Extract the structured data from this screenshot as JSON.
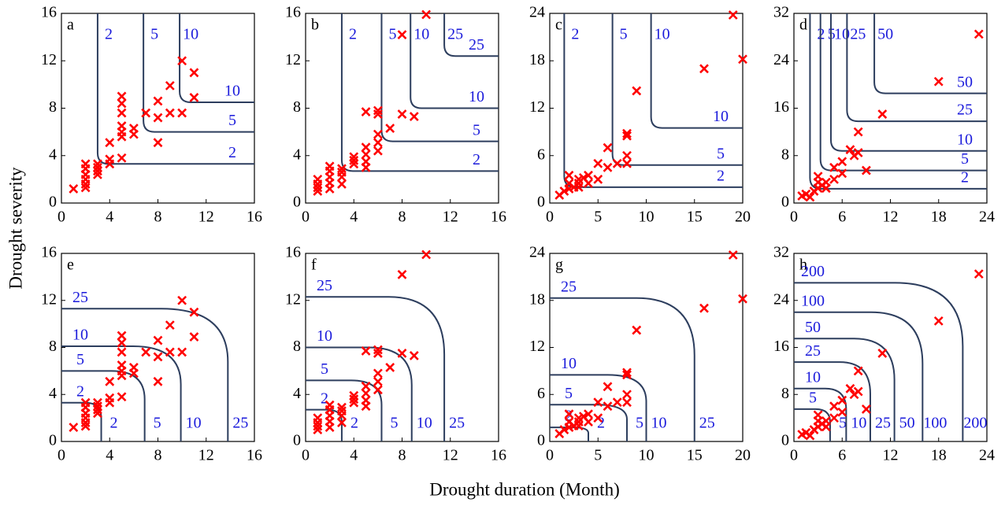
{
  "x_label": "Drought duration (Month)",
  "y_label": "Drought severity",
  "chart_data": [
    {
      "type": "scatter",
      "panel_label": "a",
      "contour_type": "or",
      "color": "#ff0000",
      "contour_color": "#2d3e5e",
      "label_color": "#1a1adb",
      "x": [
        1,
        2,
        2,
        2,
        2,
        2,
        2,
        3,
        3,
        3,
        3,
        4,
        4,
        4,
        5,
        5,
        5,
        5,
        5,
        5,
        5,
        6,
        6,
        7,
        8,
        8,
        8,
        9,
        9,
        10,
        10,
        11,
        11
      ],
      "y": [
        1.2,
        1.3,
        1.6,
        2,
        2.4,
        2.9,
        3.3,
        2.4,
        2.7,
        3,
        3.3,
        3.3,
        3.7,
        5.1,
        3.8,
        5.6,
        6,
        6.5,
        7.6,
        8.4,
        9,
        5.8,
        6.3,
        7.6,
        5.1,
        7.2,
        8.6,
        7.6,
        9.9,
        7.6,
        12,
        8.9,
        11
      ],
      "contours": [
        {
          "level": 2,
          "x": 3,
          "y": 3.3
        },
        {
          "level": 5,
          "x": 6.8,
          "y": 6
        },
        {
          "level": 10,
          "x": 9.8,
          "y": 8.5
        }
      ],
      "xlim": [
        0,
        16
      ],
      "ylim": [
        0,
        16
      ],
      "xticks": [
        0,
        4,
        8,
        12,
        16
      ],
      "yticks": [
        0,
        4,
        8,
        12,
        16
      ]
    },
    {
      "type": "scatter",
      "panel_label": "b",
      "contour_type": "or",
      "color": "#ff0000",
      "contour_color": "#2d3e5e",
      "label_color": "#1a1adb",
      "x": [
        1,
        1,
        1,
        1,
        2,
        2,
        2,
        2,
        2,
        3,
        3,
        3,
        3,
        4,
        4,
        4,
        5,
        5,
        5,
        5,
        5,
        6,
        6,
        6,
        6,
        6,
        7,
        8,
        8,
        9,
        10
      ],
      "y": [
        1,
        1.3,
        1.6,
        2,
        1.2,
        1.7,
        2.2,
        2.7,
        3.1,
        1.6,
        2.2,
        2.6,
        2.9,
        3.3,
        3.6,
        3.9,
        3,
        3.5,
        4.1,
        4.7,
        7.7,
        4.4,
        5.1,
        5.8,
        7.5,
        7.8,
        6.3,
        7.5,
        14.2,
        7.3,
        15.9
      ],
      "contours": [
        {
          "level": 2,
          "x": 3,
          "y": 2.7
        },
        {
          "level": 5,
          "x": 6.3,
          "y": 5.2
        },
        {
          "level": 10,
          "x": 8.7,
          "y": 8
        },
        {
          "level": 25,
          "x": 11.5,
          "y": 12.4
        }
      ],
      "xlim": [
        0,
        16
      ],
      "ylim": [
        0,
        16
      ],
      "xticks": [
        0,
        4,
        8,
        12,
        16
      ],
      "yticks": [
        0,
        4,
        8,
        12,
        16
      ]
    },
    {
      "type": "scatter",
      "panel_label": "c",
      "contour_type": "or",
      "color": "#ff0000",
      "contour_color": "#2d3e5e",
      "label_color": "#1a1adb",
      "x": [
        1,
        1.5,
        2,
        2,
        2,
        2.5,
        3,
        3,
        3,
        3.5,
        4,
        4,
        5,
        5,
        6,
        6,
        7,
        8,
        8,
        8,
        8,
        9,
        16,
        19,
        20
      ],
      "y": [
        1,
        1.5,
        1.8,
        2.5,
        3.5,
        2,
        2.5,
        3,
        2,
        3.2,
        3.5,
        2.5,
        3,
        5,
        4.5,
        7,
        5,
        5,
        6,
        8.5,
        8.8,
        14.2,
        17,
        23.8,
        18.2
      ],
      "contours": [
        {
          "level": 2,
          "x": 1.5,
          "y": 2
        },
        {
          "level": 5,
          "x": 6.5,
          "y": 4.8
        },
        {
          "level": 10,
          "x": 10.5,
          "y": 9.5
        }
      ],
      "xlim": [
        0,
        20
      ],
      "ylim": [
        0,
        24
      ],
      "xticks": [
        0,
        5,
        10,
        15,
        20
      ],
      "yticks": [
        0,
        6,
        12,
        18,
        24
      ]
    },
    {
      "type": "scatter",
      "panel_label": "d",
      "contour_type": "or",
      "color": "#ff0000",
      "contour_color": "#2d3e5e",
      "label_color": "#1a1adb",
      "x": [
        1,
        1.5,
        2,
        2.5,
        3,
        3,
        3,
        3.5,
        4,
        4,
        5,
        5,
        6,
        6,
        7,
        7.5,
        8,
        8,
        9,
        11,
        18,
        23
      ],
      "y": [
        1.2,
        1.5,
        1,
        2,
        2.5,
        3.5,
        4.5,
        3,
        3.5,
        2.5,
        4,
        6,
        5,
        7,
        9,
        8,
        8.5,
        12,
        5.5,
        15,
        20.5,
        28.5
      ],
      "contours": [
        {
          "level": 2,
          "x": 2,
          "y": 2.4
        },
        {
          "level": 5,
          "x": 3.3,
          "y": 5.5
        },
        {
          "level": 10,
          "x": 4.6,
          "y": 8.8
        },
        {
          "level": 25,
          "x": 6.6,
          "y": 13.8
        },
        {
          "level": 50,
          "x": 10,
          "y": 18.5
        }
      ],
      "xlim": [
        0,
        24
      ],
      "ylim": [
        0,
        32
      ],
      "xticks": [
        0,
        6,
        12,
        18,
        24
      ],
      "yticks": [
        0,
        8,
        16,
        24,
        32
      ]
    },
    {
      "type": "scatter",
      "panel_label": "e",
      "contour_type": "and",
      "color": "#ff0000",
      "contour_color": "#2d3e5e",
      "label_color": "#1a1adb",
      "x": [
        1,
        2,
        2,
        2,
        2,
        2,
        2,
        3,
        3,
        3,
        3,
        4,
        4,
        4,
        5,
        5,
        5,
        5,
        5,
        5,
        5,
        6,
        6,
        7,
        8,
        8,
        8,
        9,
        9,
        10,
        10,
        11,
        11
      ],
      "y": [
        1.2,
        1.3,
        1.6,
        2,
        2.4,
        2.9,
        3.3,
        2.4,
        2.7,
        3,
        3.3,
        3.3,
        3.7,
        5.1,
        3.8,
        5.6,
        6,
        6.5,
        7.6,
        8.4,
        9,
        5.8,
        6.3,
        7.6,
        5.1,
        7.2,
        8.6,
        7.6,
        9.9,
        7.6,
        12,
        8.9,
        11
      ],
      "contours": [
        {
          "level": 2,
          "x": 3.3,
          "y": 3.3
        },
        {
          "level": 5,
          "x": 6.9,
          "y": 6
        },
        {
          "level": 10,
          "x": 9.9,
          "y": 8.1
        },
        {
          "level": 25,
          "x": 13.8,
          "y": 11.3
        }
      ],
      "xlim": [
        0,
        16
      ],
      "ylim": [
        0,
        16
      ],
      "xticks": [
        0,
        4,
        8,
        12,
        16
      ],
      "yticks": [
        0,
        4,
        8,
        12,
        16
      ]
    },
    {
      "type": "scatter",
      "panel_label": "f",
      "contour_type": "and",
      "color": "#ff0000",
      "contour_color": "#2d3e5e",
      "label_color": "#1a1adb",
      "x": [
        1,
        1,
        1,
        1,
        2,
        2,
        2,
        2,
        2,
        3,
        3,
        3,
        3,
        4,
        4,
        4,
        5,
        5,
        5,
        5,
        5,
        6,
        6,
        6,
        6,
        6,
        7,
        8,
        8,
        9,
        10
      ],
      "y": [
        1,
        1.3,
        1.6,
        2,
        1.2,
        1.7,
        2.2,
        2.7,
        3.1,
        1.6,
        2.2,
        2.6,
        2.9,
        3.3,
        3.6,
        3.9,
        3,
        3.5,
        4.1,
        4.7,
        7.7,
        4.4,
        5.1,
        5.8,
        7.5,
        7.8,
        6.3,
        7.5,
        14.2,
        7.3,
        15.9
      ],
      "contours": [
        {
          "level": 2,
          "x": 3,
          "y": 2.7
        },
        {
          "level": 5,
          "x": 6.3,
          "y": 5.2
        },
        {
          "level": 10,
          "x": 8.8,
          "y": 8
        },
        {
          "level": 25,
          "x": 11.5,
          "y": 12.3
        }
      ],
      "xlim": [
        0,
        16
      ],
      "ylim": [
        0,
        16
      ],
      "xticks": [
        0,
        4,
        8,
        12,
        16
      ],
      "yticks": [
        0,
        4,
        8,
        12,
        16
      ]
    },
    {
      "type": "scatter",
      "panel_label": "g",
      "contour_type": "and",
      "color": "#ff0000",
      "contour_color": "#2d3e5e",
      "label_color": "#1a1adb",
      "x": [
        1,
        1.5,
        2,
        2,
        2,
        2.5,
        3,
        3,
        3,
        3.5,
        4,
        4,
        5,
        5,
        6,
        6,
        7,
        8,
        8,
        8,
        8,
        9,
        16,
        19,
        20
      ],
      "y": [
        1,
        1.5,
        1.8,
        2.5,
        3.5,
        2,
        2.5,
        3,
        2,
        3.2,
        3.5,
        2.5,
        3,
        5,
        4.5,
        7,
        5,
        5,
        6,
        8.5,
        8.8,
        14.2,
        17,
        23.8,
        18.2
      ],
      "contours": [
        {
          "level": 2,
          "x": 4,
          "y": 1.8
        },
        {
          "level": 5,
          "x": 8,
          "y": 4.7
        },
        {
          "level": 10,
          "x": 10,
          "y": 8.5
        },
        {
          "level": 25,
          "x": 15,
          "y": 18.3
        }
      ],
      "xlim": [
        0,
        20
      ],
      "ylim": [
        0,
        24
      ],
      "xticks": [
        0,
        5,
        10,
        15,
        20
      ],
      "yticks": [
        0,
        6,
        12,
        18,
        24
      ]
    },
    {
      "type": "scatter",
      "panel_label": "h",
      "contour_type": "and",
      "color": "#ff0000",
      "contour_color": "#2d3e5e",
      "label_color": "#1a1adb",
      "x": [
        1,
        1.5,
        2,
        2.5,
        3,
        3,
        3,
        3.5,
        4,
        4,
        5,
        5,
        6,
        6,
        7,
        7.5,
        8,
        8,
        9,
        11,
        18,
        23
      ],
      "y": [
        1.2,
        1.5,
        1,
        2,
        2.5,
        3.5,
        4.5,
        3,
        3.5,
        2.5,
        4,
        6,
        5,
        7,
        9,
        8,
        8.5,
        12,
        5.5,
        15,
        20.5,
        28.5
      ],
      "contours": [
        {
          "level": 5,
          "x": 4.5,
          "y": 5.5
        },
        {
          "level": 10,
          "x": 6.5,
          "y": 9
        },
        {
          "level": 25,
          "x": 9.5,
          "y": 13.5
        },
        {
          "level": 50,
          "x": 12.5,
          "y": 17.5
        },
        {
          "level": 100,
          "x": 16,
          "y": 22
        },
        {
          "level": 200,
          "x": 21,
          "y": 27
        }
      ],
      "xlim": [
        0,
        24
      ],
      "ylim": [
        0,
        32
      ],
      "xticks": [
        0,
        6,
        12,
        18,
        24
      ],
      "yticks": [
        0,
        8,
        16,
        24,
        32
      ]
    }
  ]
}
